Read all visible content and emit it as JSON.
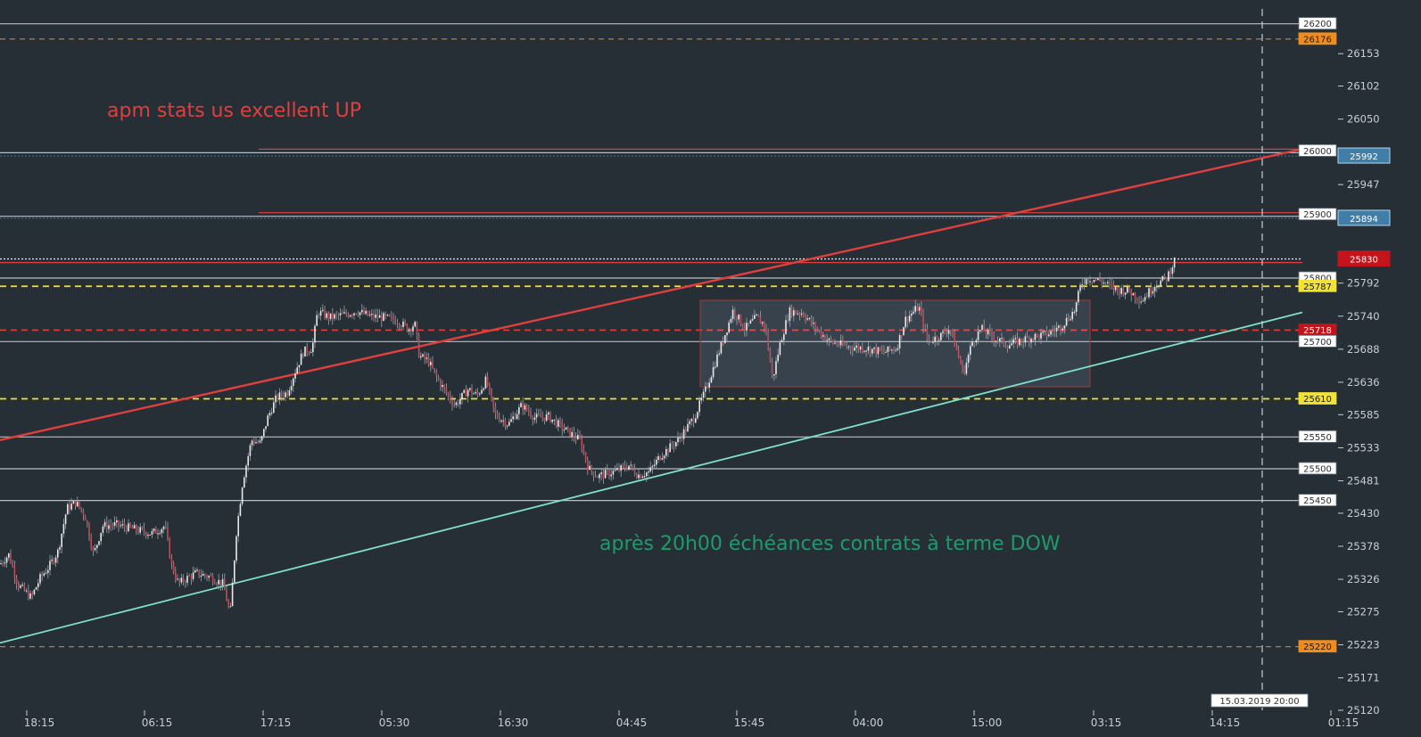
{
  "colors": {
    "background": "#262e36",
    "candle": "#e8e8e8",
    "wick": "#9aa3ab",
    "channel_top": "#e0403d",
    "channel_bottom": "#7fe0c8",
    "annotation_red": "#e0403d",
    "annotation_green": "#1f9a6c",
    "dashed_orange": "#d08a2a",
    "dashed_yellow": "#f2e237",
    "dashed_red": "#e0403d",
    "level_gray": "#b8bec4",
    "level_blue": "#3b6e92",
    "range_box": "#8a3b3b"
  },
  "annotations": {
    "top_text": "apm stats us excellent UP",
    "bottom_text": "après 20h00 échéances contrats à terme DOW"
  },
  "chart_data": {
    "type": "candlestick",
    "x_ticks": [
      "18:15",
      "06:15",
      "17:15",
      "05:30",
      "16:30",
      "04:45",
      "15:45",
      "04:00",
      "15:00",
      "03:15",
      "14:15",
      "01:15"
    ],
    "y_ticks": [
      26153,
      26102,
      26050,
      25947,
      25792,
      25740,
      25688,
      25636,
      25585,
      25533,
      25481,
      25430,
      25378,
      25326,
      25275,
      25223,
      25171,
      25120
    ],
    "ylim": [
      25120,
      26215
    ],
    "date_marker": "15.03.2019 20:00",
    "levels": [
      {
        "value": 26200,
        "label": "26200",
        "style": "solid",
        "badge": "light"
      },
      {
        "value": 26176,
        "label": "26176",
        "style": "dashed-orange",
        "badge": "orange"
      },
      {
        "value": 26000,
        "label": "26000",
        "style": "solid-double",
        "badge": "light"
      },
      {
        "value": 25992,
        "label": "25992",
        "style": "dotted-blue",
        "badge": "blue"
      },
      {
        "value": 25900,
        "label": "25900",
        "style": "solid-double",
        "badge": "light"
      },
      {
        "value": 25894,
        "label": "25894",
        "style": "dotted-blue",
        "badge": "blue"
      },
      {
        "value": 25830,
        "label": "25830",
        "style": "dotted-white",
        "badge": "red"
      },
      {
        "value": 25800,
        "label": "25800",
        "style": "solid",
        "badge": "light"
      },
      {
        "value": 25787,
        "label": "25787",
        "style": "dashed-yellow",
        "badge": "yellow"
      },
      {
        "value": 25718,
        "label": "25718",
        "style": "dashed-red",
        "badge": "red"
      },
      {
        "value": 25700,
        "label": "25700",
        "style": "solid",
        "badge": "light"
      },
      {
        "value": 25610,
        "label": "25610",
        "style": "dashed-yellow",
        "badge": "yellow"
      },
      {
        "value": 25550,
        "label": "25550",
        "style": "solid",
        "badge": "light"
      },
      {
        "value": 25500,
        "label": "25500",
        "style": "solid",
        "badge": "light"
      },
      {
        "value": 25450,
        "label": "25450",
        "style": "solid",
        "badge": "light"
      },
      {
        "value": 25220,
        "label": "25220",
        "style": "dashed-orange",
        "badge": "orange"
      }
    ],
    "channel_top": {
      "start": [
        0,
        25545
      ],
      "end": [
        1460,
        26003
      ]
    },
    "channel_bottom": {
      "start": [
        0,
        25226
      ],
      "end": [
        1460,
        25746
      ]
    },
    "range_box": {
      "x_start": 785,
      "x_end": 1222,
      "top": 25765,
      "bottom": 25629
    },
    "price_path": [
      [
        0,
        25350
      ],
      [
        10,
        25365
      ],
      [
        20,
        25318
      ],
      [
        35,
        25297
      ],
      [
        45,
        25328
      ],
      [
        55,
        25346
      ],
      [
        65,
        25370
      ],
      [
        75,
        25438
      ],
      [
        85,
        25447
      ],
      [
        95,
        25427
      ],
      [
        105,
        25365
      ],
      [
        115,
        25410
      ],
      [
        130,
        25412
      ],
      [
        150,
        25405
      ],
      [
        170,
        25398
      ],
      [
        185,
        25410
      ],
      [
        192,
        25350
      ],
      [
        200,
        25319
      ],
      [
        210,
        25328
      ],
      [
        220,
        25336
      ],
      [
        235,
        25330
      ],
      [
        250,
        25319
      ],
      [
        258,
        25270
      ],
      [
        265,
        25400
      ],
      [
        272,
        25480
      ],
      [
        282,
        25545
      ],
      [
        292,
        25540
      ],
      [
        300,
        25580
      ],
      [
        310,
        25612
      ],
      [
        322,
        25620
      ],
      [
        330,
        25650
      ],
      [
        340,
        25684
      ],
      [
        350,
        25690
      ],
      [
        356,
        25747
      ],
      [
        370,
        25738
      ],
      [
        385,
        25742
      ],
      [
        400,
        25748
      ],
      [
        415,
        25740
      ],
      [
        430,
        25738
      ],
      [
        445,
        25733
      ],
      [
        458,
        25720
      ],
      [
        465,
        25728
      ],
      [
        470,
        25677
      ],
      [
        480,
        25670
      ],
      [
        490,
        25642
      ],
      [
        500,
        25620
      ],
      [
        510,
        25600
      ],
      [
        525,
        25625
      ],
      [
        535,
        25615
      ],
      [
        545,
        25640
      ],
      [
        555,
        25585
      ],
      [
        570,
        25570
      ],
      [
        585,
        25600
      ],
      [
        600,
        25580
      ],
      [
        615,
        25582
      ],
      [
        630,
        25565
      ],
      [
        650,
        25545
      ],
      [
        660,
        25500
      ],
      [
        670,
        25488
      ],
      [
        690,
        25496
      ],
      [
        705,
        25505
      ],
      [
        715,
        25490
      ],
      [
        728,
        25495
      ],
      [
        740,
        25520
      ],
      [
        760,
        25545
      ],
      [
        778,
        25580
      ],
      [
        790,
        25620
      ],
      [
        800,
        25660
      ],
      [
        810,
        25700
      ],
      [
        822,
        25750
      ],
      [
        835,
        25720
      ],
      [
        848,
        25738
      ],
      [
        858,
        25725
      ],
      [
        866,
        25640
      ],
      [
        875,
        25700
      ],
      [
        885,
        25748
      ],
      [
        900,
        25745
      ],
      [
        915,
        25720
      ],
      [
        930,
        25700
      ],
      [
        950,
        25692
      ],
      [
        970,
        25690
      ],
      [
        990,
        25683
      ],
      [
        1005,
        25690
      ],
      [
        1015,
        25735
      ],
      [
        1030,
        25755
      ],
      [
        1040,
        25700
      ],
      [
        1055,
        25710
      ],
      [
        1065,
        25722
      ],
      [
        1080,
        25650
      ],
      [
        1090,
        25700
      ],
      [
        1100,
        25720
      ],
      [
        1115,
        25705
      ],
      [
        1130,
        25695
      ],
      [
        1145,
        25702
      ],
      [
        1160,
        25708
      ],
      [
        1175,
        25712
      ],
      [
        1190,
        25725
      ],
      [
        1205,
        25750
      ],
      [
        1212,
        25792
      ],
      [
        1220,
        25800
      ],
      [
        1235,
        25795
      ],
      [
        1250,
        25782
      ],
      [
        1265,
        25780
      ],
      [
        1280,
        25765
      ],
      [
        1295,
        25790
      ],
      [
        1308,
        25800
      ],
      [
        1318,
        25832
      ]
    ]
  }
}
